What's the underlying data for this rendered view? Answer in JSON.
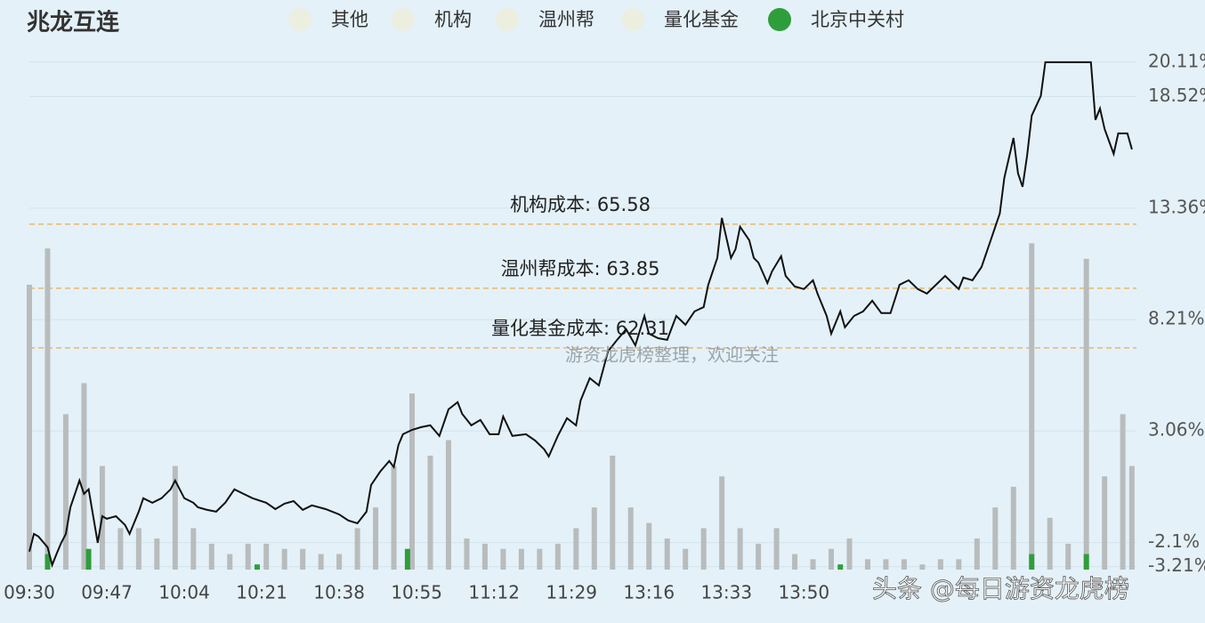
{
  "chart_data": {
    "type": "intraday",
    "title": "兆龙互连",
    "legend_items": [
      {
        "name": "其他",
        "color": "#eceee0"
      },
      {
        "name": "机构",
        "color": "#eceee0"
      },
      {
        "name": "温州帮",
        "color": "#eceee0"
      },
      {
        "name": "量化基金",
        "color": "#eceee0"
      }
    ],
    "xlim": [
      0,
      243
    ],
    "xticks": [
      {
        "value": 0,
        "label": "09:30"
      },
      {
        "value": 17,
        "label": "09:47"
      },
      {
        "value": 34,
        "label": "10:04"
      },
      {
        "value": 51,
        "label": "10:21"
      },
      {
        "value": 68,
        "label": "10:38"
      },
      {
        "value": 85,
        "label": "10:55"
      },
      {
        "value": 102,
        "label": "11:12"
      },
      {
        "value": 119,
        "label": "11:29"
      },
      {
        "value": 136,
        "label": "13:16"
      },
      {
        "value": 153,
        "label": "13:33"
      },
      {
        "value": 170,
        "label": "13:50"
      }
    ],
    "ylim": [
      -3.35,
      20.6
    ],
    "yticks": [
      {
        "value": 20.11,
        "label": "20.11%"
      },
      {
        "value": 18.52,
        "label": "18.52%"
      },
      {
        "value": 13.36,
        "label": "13.36%"
      },
      {
        "value": 8.21,
        "label": "8.21%"
      },
      {
        "value": 3.06,
        "label": "3.06%"
      },
      {
        "value": -2.1,
        "label": "-2.1%"
      },
      {
        "value": -3.21,
        "label": "-3.21%"
      }
    ],
    "y2lim": [
      0,
      100
    ],
    "grid": true,
    "annotations": [
      {
        "text": "机构成本: 65.58",
        "y": 12.62
      },
      {
        "text": "温州帮成本: 63.85",
        "y": 9.66
      },
      {
        "text": "量化基金成本: 62.31",
        "y": 6.9
      }
    ],
    "watermarks": [
      "游资龙虎榜整理，欢迎关注",
      "头条 @每日游资龙虎榜"
    ],
    "series": [
      {
        "type": "bar",
        "axis": "y2",
        "color": "#b8bcbc",
        "x": [
          0,
          4,
          8,
          12,
          16,
          20,
          24,
          28,
          32,
          36,
          40,
          44,
          48,
          52,
          56,
          60,
          64,
          68,
          72,
          76,
          80,
          84,
          88,
          92,
          96,
          100,
          104,
          108,
          112,
          116,
          120,
          124,
          128,
          132,
          136,
          140,
          144,
          148,
          152,
          156,
          160,
          164,
          168,
          172,
          176,
          180,
          184,
          188,
          192,
          196,
          200,
          204,
          208,
          212,
          216,
          220,
          224,
          228,
          232,
          236,
          240,
          242
        ],
        "values": [
          55,
          62,
          30,
          36,
          20,
          8,
          8,
          6,
          20,
          8,
          5,
          3,
          5,
          5,
          4,
          4,
          3,
          3,
          8,
          12,
          20,
          34,
          22,
          25,
          6,
          5,
          4,
          4,
          4,
          5,
          8,
          12,
          22,
          12,
          9,
          6,
          4,
          8,
          18,
          8,
          5,
          8,
          3,
          2,
          4,
          6,
          2,
          2,
          2,
          1,
          2,
          2,
          6,
          12,
          16,
          63,
          10,
          5,
          60,
          18,
          30,
          20
        ]
      },
      {
        "type": "bar",
        "axis": "y2",
        "name": "北京中关村",
        "color": "#2e9e3a",
        "x": [
          4,
          13,
          50,
          83,
          178,
          220,
          232
        ],
        "values": [
          3,
          4,
          1,
          4,
          1,
          3,
          3
        ]
      },
      {
        "type": "line",
        "color": "#111111",
        "x": [
          0,
          1,
          2,
          4,
          5,
          6,
          7,
          8,
          9,
          11,
          12,
          13,
          15,
          16,
          17,
          19,
          21,
          22,
          24,
          25,
          27,
          29,
          31,
          32,
          34,
          36,
          37,
          39,
          41,
          43,
          45,
          47,
          49,
          52,
          54,
          56,
          58,
          60,
          62,
          65,
          68,
          70,
          72,
          74,
          75,
          77,
          79,
          80,
          81,
          82,
          84,
          86,
          88,
          90,
          92,
          94,
          95,
          97,
          99,
          101,
          103,
          104,
          106,
          109,
          111,
          113,
          114,
          116,
          118,
          120,
          121,
          123,
          125,
          127,
          129,
          131,
          133,
          135,
          136,
          138,
          140,
          142,
          144,
          146,
          148,
          149,
          151,
          152,
          154,
          155,
          156,
          158,
          159,
          160,
          162,
          163,
          165,
          166,
          168,
          170,
          172,
          173,
          175,
          176,
          178,
          179,
          181,
          183,
          185,
          187,
          189,
          191,
          193,
          195,
          197,
          199,
          201,
          203,
          204,
          205,
          207,
          209,
          211,
          213,
          214,
          216,
          217,
          218,
          219,
          220,
          222,
          223,
          233,
          234,
          235,
          236,
          238,
          239,
          241,
          242
        ],
        "values": [
          -2.52,
          -1.7,
          -1.82,
          -2.32,
          -3.14,
          -2.61,
          -2.11,
          -1.7,
          -0.47,
          0.77,
          0.15,
          0.36,
          -2.11,
          -0.88,
          -1.0,
          -0.88,
          -1.29,
          -1.7,
          -0.67,
          -0.05,
          -0.26,
          -0.05,
          0.36,
          0.77,
          -0.05,
          -0.26,
          -0.47,
          -0.59,
          -0.67,
          -0.26,
          0.36,
          0.15,
          -0.05,
          -0.26,
          -0.55,
          -0.3,
          -0.18,
          -0.59,
          -0.38,
          -0.55,
          -0.8,
          -1.08,
          -1.21,
          -0.67,
          0.56,
          1.18,
          1.67,
          1.39,
          2.41,
          2.91,
          3.11,
          3.24,
          3.32,
          2.83,
          4.06,
          4.39,
          3.85,
          3.32,
          3.57,
          2.91,
          2.91,
          3.73,
          2.83,
          2.91,
          2.62,
          2.21,
          1.88,
          2.83,
          3.65,
          3.32,
          4.47,
          5.5,
          5.17,
          6.74,
          7.27,
          7.76,
          7.02,
          8.38,
          7.56,
          7.35,
          7.27,
          8.38,
          7.97,
          8.59,
          8.79,
          9.82,
          11.06,
          12.91,
          11.06,
          11.47,
          12.5,
          11.88,
          11.06,
          10.85,
          9.9,
          10.44,
          11.14,
          10.23,
          9.74,
          9.62,
          10.03,
          9.41,
          8.38,
          7.56,
          8.59,
          7.85,
          8.38,
          8.59,
          9.08,
          8.51,
          8.51,
          9.82,
          10.03,
          9.62,
          9.41,
          9.82,
          10.23,
          9.82,
          9.62,
          10.15,
          10.03,
          10.64,
          11.88,
          13.11,
          14.76,
          16.61,
          14.97,
          14.35,
          15.79,
          17.64,
          18.55,
          20.11,
          20.11,
          17.44,
          17.97,
          17.02,
          15.87,
          16.82,
          16.82,
          16.08
        ]
      }
    ]
  }
}
